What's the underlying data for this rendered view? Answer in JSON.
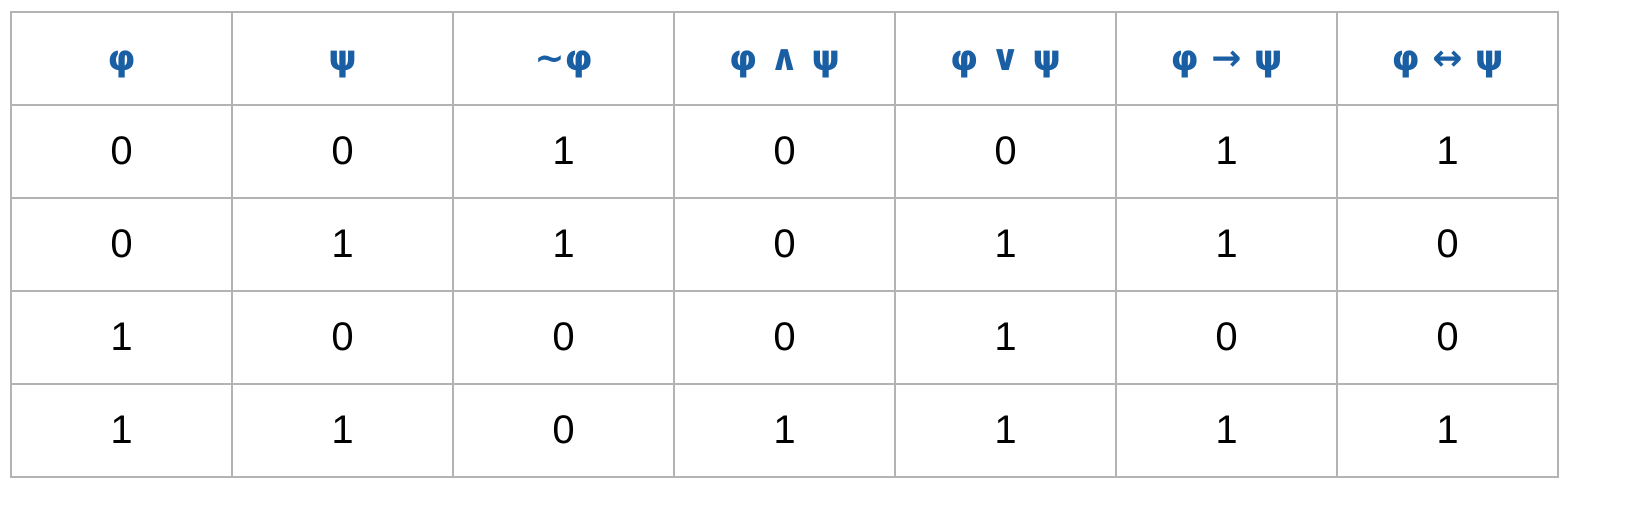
{
  "colors": {
    "header_text": "#1a5fa3",
    "cell_text": "#000000",
    "border": "#b3b3b3"
  },
  "table": {
    "headers": [
      "φ",
      "ψ",
      "~φ",
      "φ ∧ ψ",
      "φ ∨ ψ",
      "φ → ψ",
      "φ ↔ ψ"
    ],
    "rows": [
      [
        "0",
        "0",
        "1",
        "0",
        "0",
        "1",
        "1"
      ],
      [
        "0",
        "1",
        "1",
        "0",
        "1",
        "1",
        "0"
      ],
      [
        "1",
        "0",
        "0",
        "0",
        "1",
        "0",
        "0"
      ],
      [
        "1",
        "1",
        "0",
        "1",
        "1",
        "1",
        "1"
      ]
    ]
  }
}
